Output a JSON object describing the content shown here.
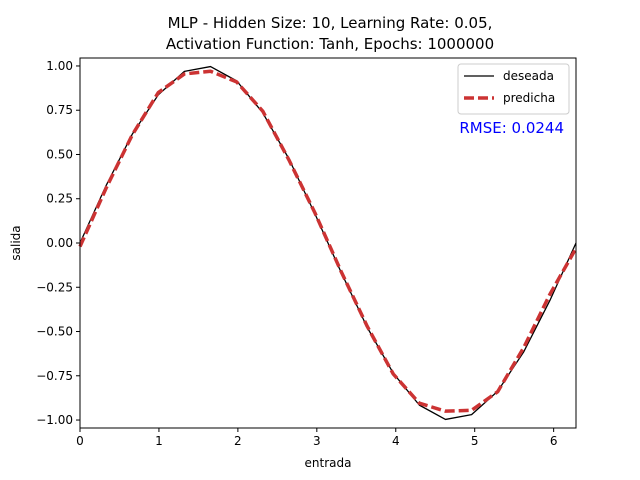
{
  "chart_data": {
    "type": "line",
    "title_line1": "MLP - Hidden Size: 10, Learning Rate: 0.05,",
    "title_line2": "Activation Function: Tanh, Epochs: 1000000",
    "xlabel": "entrada",
    "ylabel": "salida",
    "xlim": [
      0,
      6.2832
    ],
    "ylim": [
      -1.045,
      1.045
    ],
    "xticks": [
      0,
      1,
      2,
      3,
      4,
      5,
      6
    ],
    "xtick_labels": [
      "0",
      "1",
      "2",
      "3",
      "4",
      "5",
      "6"
    ],
    "yticks": [
      -1.0,
      -0.75,
      -0.5,
      -0.25,
      0.0,
      0.25,
      0.5,
      0.75,
      1.0
    ],
    "ytick_labels": [
      "−1.00",
      "−0.75",
      "−0.50",
      "−0.25",
      "0.00",
      "0.25",
      "0.50",
      "0.75",
      "1.00"
    ],
    "grid": false,
    "legend_position": "top-right",
    "annotation": {
      "text": "RMSE: 0.0244",
      "color": "#0000ff"
    },
    "series": [
      {
        "name": "deseada",
        "color": "#000000",
        "style": "solid",
        "x": [
          0,
          0.3307,
          0.6614,
          0.9921,
          1.3228,
          1.6535,
          1.9842,
          2.3149,
          2.6456,
          2.9762,
          3.3069,
          3.6376,
          3.9683,
          4.299,
          4.6297,
          4.9604,
          5.2911,
          5.6218,
          5.9525,
          6.2832
        ],
        "y": [
          0,
          0.3247,
          0.6142,
          0.8372,
          0.9694,
          0.9966,
          0.9158,
          0.7357,
          0.4759,
          0.1646,
          -0.1646,
          -0.4759,
          -0.7357,
          -0.9158,
          -0.9966,
          -0.9694,
          -0.8372,
          -0.6142,
          -0.3247,
          0
        ]
      },
      {
        "name": "predicha",
        "color": "#cc3333",
        "style": "dashed",
        "x": [
          0,
          0.3307,
          0.6614,
          0.9921,
          1.3228,
          1.6535,
          1.9842,
          2.3149,
          2.6456,
          2.9762,
          3.3069,
          3.6376,
          3.9683,
          4.299,
          4.6297,
          4.9604,
          5.2911,
          5.6218,
          5.9525,
          6.2832
        ],
        "y": [
          -0.02,
          0.31,
          0.61,
          0.85,
          0.955,
          0.97,
          0.91,
          0.745,
          0.47,
          0.17,
          -0.16,
          -0.47,
          -0.74,
          -0.905,
          -0.95,
          -0.945,
          -0.84,
          -0.59,
          -0.29,
          -0.03
        ]
      }
    ]
  }
}
